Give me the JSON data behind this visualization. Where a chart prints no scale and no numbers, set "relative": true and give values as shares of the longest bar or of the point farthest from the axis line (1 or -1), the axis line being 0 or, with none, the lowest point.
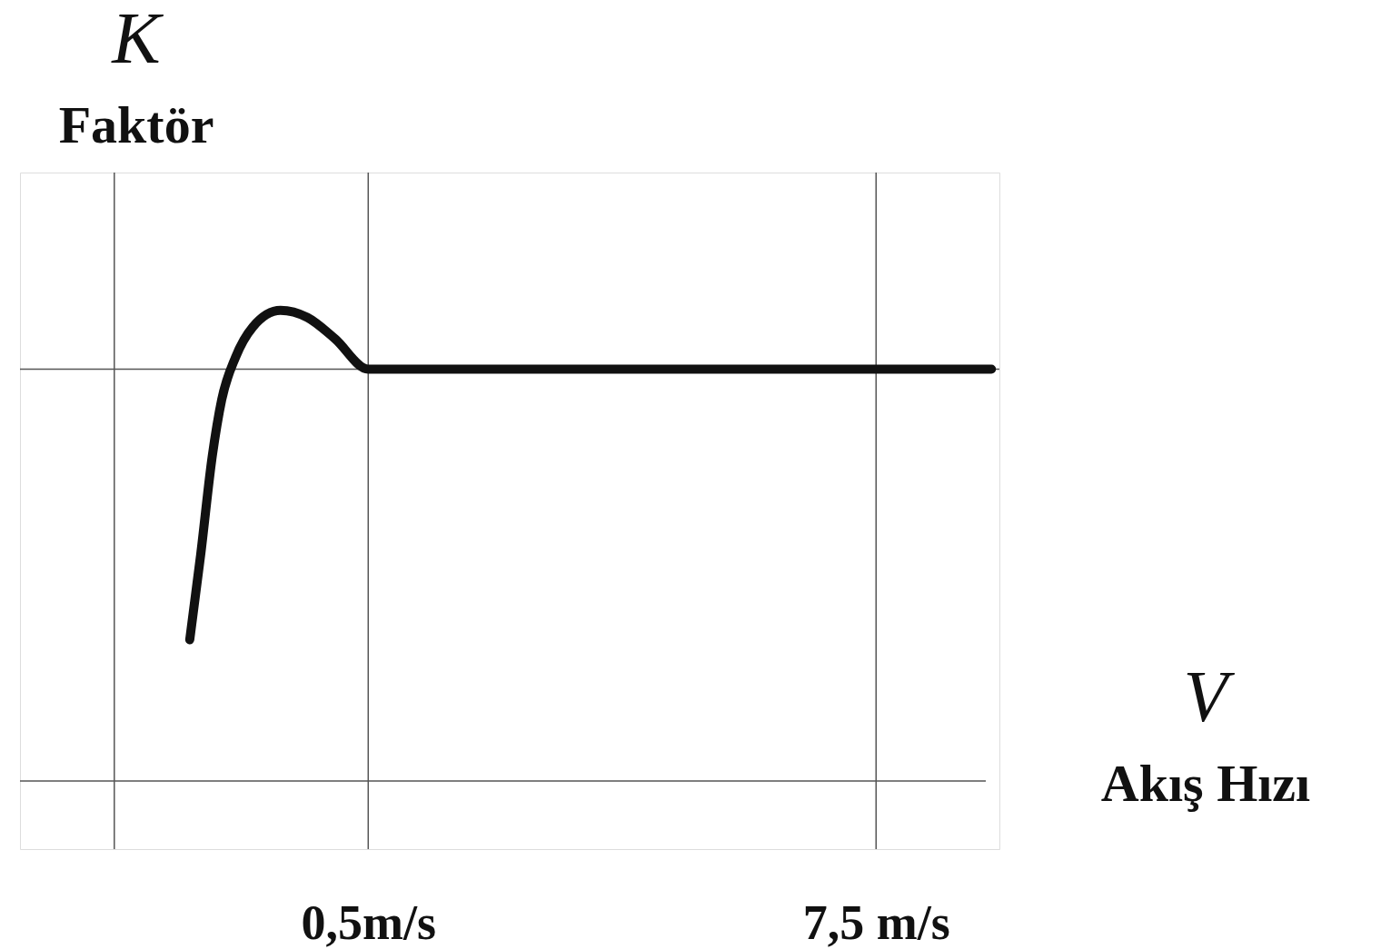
{
  "chart_data": {
    "type": "line",
    "relative": true,
    "xlabel": "V\nAkış Hızı",
    "ylabel": "K\nFaktör",
    "xlim": [
      -4.3,
      9.2
    ],
    "xticks": [
      {
        "value": 0.5,
        "label": "0,5m/s"
      },
      {
        "value": 7.5,
        "label": "7,5 m/s"
      }
    ],
    "x": [
      -1.96,
      -1.81,
      -1.65,
      -1.52,
      -1.33,
      -1.09,
      -0.71,
      -0.34,
      0.04,
      0.5,
      4.16,
      9.09
    ],
    "series": [
      {
        "color": "#111111",
        "values": [
          0.3,
          0.48,
          0.69,
          0.81,
          0.9,
          0.965,
          1.0,
          0.985,
          0.94,
          0.875,
          0.875,
          0.875
        ]
      }
    ],
    "ref_lines": [
      {
        "axis": "x",
        "value": -3.0,
        "color": "#555555"
      },
      {
        "axis": "x",
        "value": 0.5,
        "color": "#555555"
      },
      {
        "axis": "x",
        "value": 7.5,
        "color": "#555555"
      },
      {
        "axis": "y",
        "value": 0.875,
        "color": "#555555"
      }
    ],
    "grid": false,
    "marker": "none",
    "line_style": "solid"
  }
}
